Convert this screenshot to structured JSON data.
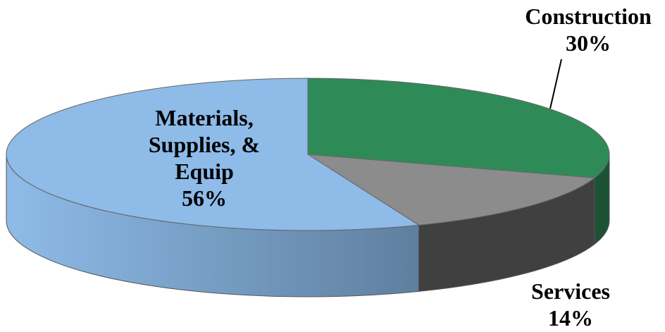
{
  "chart_data": {
    "type": "pie",
    "title": "",
    "slices": [
      {
        "label": "Construction",
        "value": 30,
        "percent_label": "30%",
        "color": "#2e8b57",
        "side_color": "#1c5234"
      },
      {
        "label": "Services",
        "value": 14,
        "percent_label": "14%",
        "color": "#8c8c8c",
        "side_color": "#404040"
      },
      {
        "label": "Materials, Supplies, & Equip",
        "value": 56,
        "percent_label": "56%",
        "color": "#8ebbe8",
        "side_color": "#5f7f9f"
      }
    ]
  }
}
